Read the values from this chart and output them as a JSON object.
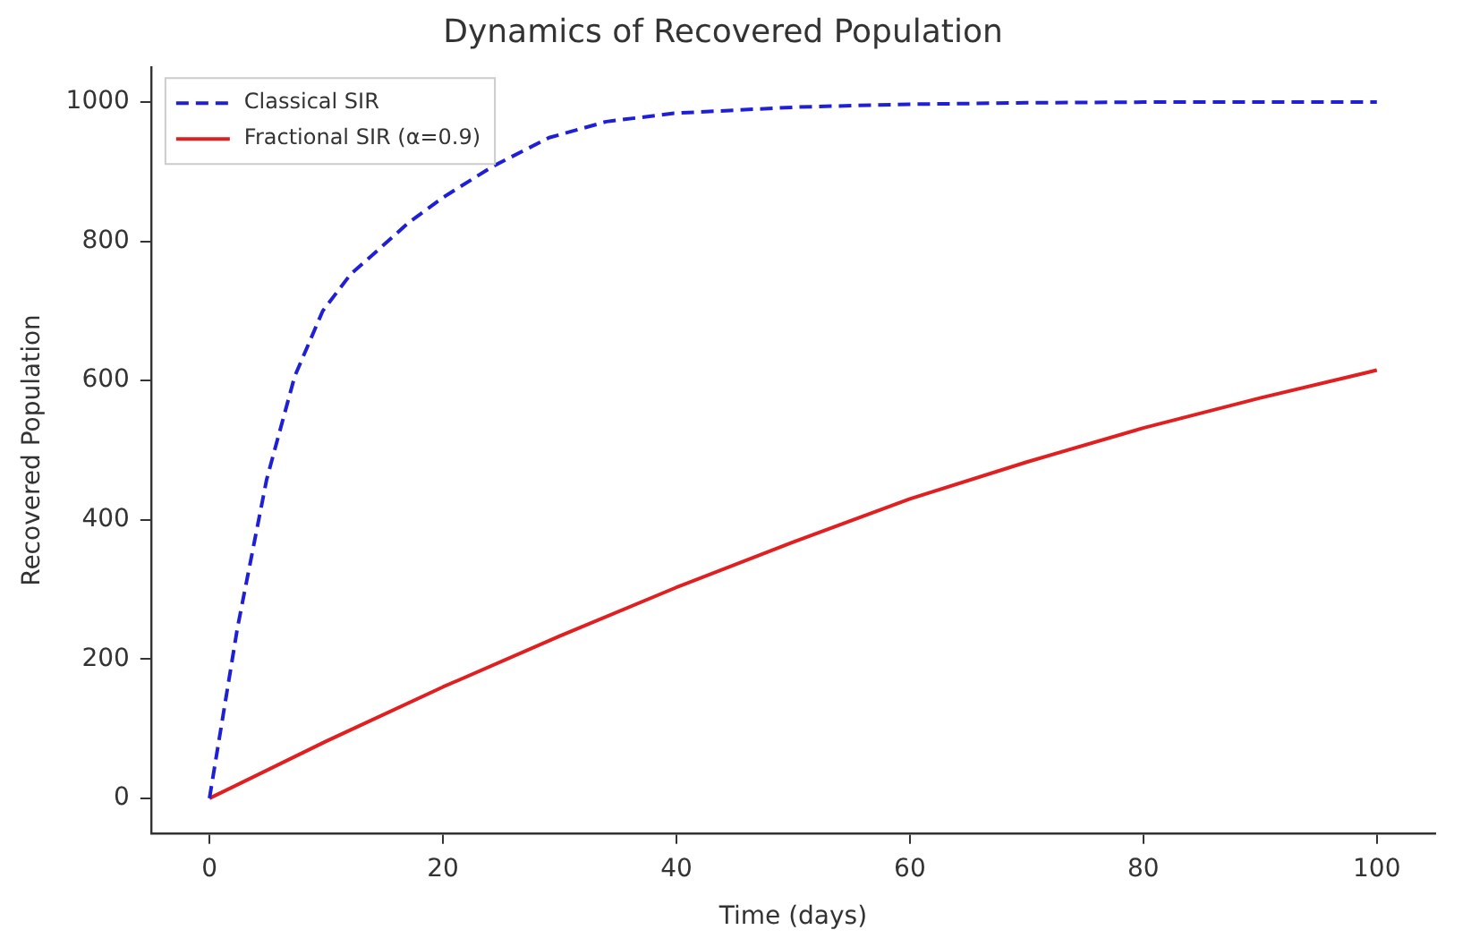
{
  "chart_data": {
    "type": "line",
    "title": "Dynamics of Recovered Population",
    "xlabel": "Time (days)",
    "ylabel": "Recovered Population",
    "xlim": [
      -5,
      105
    ],
    "ylim": [
      -50,
      1050
    ],
    "xticks": [
      0,
      20,
      40,
      60,
      80,
      100
    ],
    "yticks": [
      0,
      200,
      400,
      600,
      800,
      1000
    ],
    "grid": false,
    "legend": "top left",
    "marker": "none",
    "series": [
      {
        "name": "Classical SIR",
        "color": "#1f1fd6",
        "line_style": "dashed",
        "x": [
          0,
          2.4,
          4.9,
          7.3,
          9.7,
          12.1,
          14.6,
          17,
          20,
          24.3,
          29.1,
          34,
          39.8,
          50.5,
          60,
          70,
          80,
          90,
          100
        ],
        "values": [
          0,
          245,
          458,
          606,
          700,
          753,
          790,
          826,
          863,
          908,
          949,
          972,
          984,
          993,
          997,
          999,
          1000,
          1000,
          1000
        ]
      },
      {
        "name": "Fractional SIR (α=0.9)",
        "color": "#e02020",
        "line_style": "solid",
        "x": [
          0,
          10,
          20,
          30,
          40,
          50,
          60,
          70,
          80,
          90,
          100
        ],
        "values": [
          0,
          82,
          160,
          233,
          303,
          368,
          430,
          483,
          532,
          575,
          615
        ]
      }
    ]
  }
}
